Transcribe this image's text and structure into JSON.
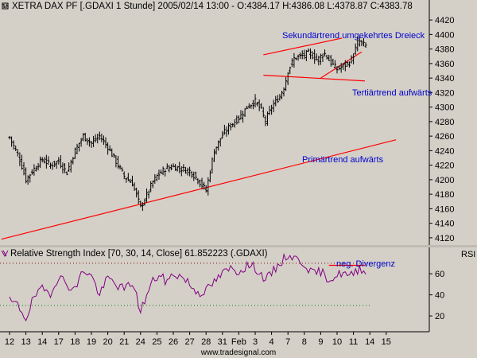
{
  "chart_data": [
    {
      "type": "ohlc",
      "title": "XETRA DAX PF [.GDAXI  1 Stunde] 2005/02/14 13:00 - O:4384.17 H:4386.08 L:4378.87 C:4383.78",
      "ylim": [
        4110,
        4430
      ],
      "y_ticks": [
        4120,
        4140,
        4160,
        4180,
        4200,
        4220,
        4240,
        4260,
        4280,
        4300,
        4320,
        4340,
        4360,
        4380,
        4400,
        4420
      ],
      "x_ticks": [
        "12",
        "13",
        "14",
        "17",
        "18",
        "19",
        "20",
        "21",
        "24",
        "25",
        "26",
        "27",
        "28",
        "31",
        "Feb",
        "3",
        "4",
        "7",
        "8",
        "9",
        "10",
        "11",
        "14",
        "15"
      ],
      "x_tick_slot": [
        0,
        1,
        2,
        3,
        4,
        5,
        6,
        7,
        8,
        9,
        10,
        11,
        12,
        13,
        14,
        15,
        16,
        17,
        18,
        19,
        20,
        21,
        22,
        23
      ],
      "annotations": [
        {
          "text": "Sekundärtrend umgekehrtes Dreieck"
        },
        {
          "text": "Tertiärtrend aufwärts"
        },
        {
          "text": "Primärtrend aufwärts"
        }
      ],
      "trendlines": [
        {
          "name": "primary",
          "from": [
            -0.5,
            4118
          ],
          "to": [
            23.6,
            4255
          ]
        },
        {
          "name": "wedge_upper",
          "from": [
            15.5,
            4372
          ],
          "to": [
            20.3,
            4395
          ]
        },
        {
          "name": "wedge_lower",
          "from": [
            15.5,
            4344
          ],
          "to": [
            21.7,
            4336
          ]
        },
        {
          "name": "tertiary",
          "from": [
            19.0,
            4340
          ],
          "to": [
            21.5,
            4376
          ]
        }
      ],
      "anchors": [
        [
          0,
          4258
        ],
        [
          0.6,
          4230
        ],
        [
          1.0,
          4200
        ],
        [
          1.5,
          4215
        ],
        [
          2.0,
          4228
        ],
        [
          2.5,
          4220
        ],
        [
          3.0,
          4225
        ],
        [
          3.5,
          4210
        ],
        [
          4.0,
          4240
        ],
        [
          4.5,
          4260
        ],
        [
          5.0,
          4250
        ],
        [
          5.5,
          4260
        ],
        [
          6.0,
          4245
        ],
        [
          6.5,
          4225
        ],
        [
          7.0,
          4205
        ],
        [
          7.5,
          4195
        ],
        [
          8.0,
          4162
        ],
        [
          8.3,
          4175
        ],
        [
          8.7,
          4195
        ],
        [
          9.0,
          4205
        ],
        [
          9.5,
          4215
        ],
        [
          10.0,
          4218
        ],
        [
          10.5,
          4215
        ],
        [
          11.0,
          4212
        ],
        [
          11.5,
          4200
        ],
        [
          12.0,
          4185
        ],
        [
          12.5,
          4240
        ],
        [
          13.0,
          4262
        ],
        [
          13.5,
          4275
        ],
        [
          14.0,
          4285
        ],
        [
          14.5,
          4300
        ],
        [
          15.0,
          4308
        ],
        [
          15.4,
          4295
        ],
        [
          15.6,
          4280
        ],
        [
          16.0,
          4300
        ],
        [
          16.5,
          4315
        ],
        [
          16.8,
          4330
        ],
        [
          17.0,
          4350
        ],
        [
          17.4,
          4368
        ],
        [
          17.8,
          4370
        ],
        [
          18.3,
          4375
        ],
        [
          18.8,
          4365
        ],
        [
          19.2,
          4375
        ],
        [
          19.6,
          4362
        ],
        [
          20.0,
          4352
        ],
        [
          20.5,
          4358
        ],
        [
          20.8,
          4362
        ],
        [
          21.0,
          4372
        ],
        [
          21.3,
          4392
        ],
        [
          21.6,
          4386
        ],
        [
          21.8,
          4384
        ]
      ],
      "last_bar": {
        "open": 4384.17,
        "high": 4386.08,
        "low": 4378.87,
        "close": 4383.78
      }
    },
    {
      "type": "line",
      "title": "Relative Strength Index [70, 30, 14, Close] 61.852223 (.GDAXI)",
      "ylabel": "RSI",
      "ylim": [
        5,
        85
      ],
      "y_ticks": [
        20,
        40,
        60
      ],
      "reference_levels": [
        70,
        30
      ],
      "annotations": [
        {
          "text": "neg. Divergenz"
        }
      ],
      "divergence_line": {
        "from": [
          19.5,
          68
        ],
        "to": [
          21.7,
          68
        ]
      },
      "anchors": [
        [
          0,
          34
        ],
        [
          0.5,
          30
        ],
        [
          1.0,
          18
        ],
        [
          1.5,
          38
        ],
        [
          2.0,
          45
        ],
        [
          2.5,
          42
        ],
        [
          3.0,
          58
        ],
        [
          3.5,
          50
        ],
        [
          4.0,
          45
        ],
        [
          4.5,
          64
        ],
        [
          5.0,
          58
        ],
        [
          5.5,
          40
        ],
        [
          6.0,
          56
        ],
        [
          6.5,
          50
        ],
        [
          7.0,
          45
        ],
        [
          7.5,
          52
        ],
        [
          8.0,
          25
        ],
        [
          8.4,
          40
        ],
        [
          8.8,
          55
        ],
        [
          9.2,
          58
        ],
        [
          9.6,
          52
        ],
        [
          10.0,
          60
        ],
        [
          10.4,
          58
        ],
        [
          10.8,
          54
        ],
        [
          11.2,
          46
        ],
        [
          11.6,
          42
        ],
        [
          12.0,
          44
        ],
        [
          12.5,
          52
        ],
        [
          13.0,
          60
        ],
        [
          13.5,
          65
        ],
        [
          14.0,
          62
        ],
        [
          14.5,
          68
        ],
        [
          15.0,
          66
        ],
        [
          15.4,
          58
        ],
        [
          15.7,
          55
        ],
        [
          16.0,
          60
        ],
        [
          16.5,
          70
        ],
        [
          17.0,
          78
        ],
        [
          17.5,
          74
        ],
        [
          18.0,
          70
        ],
        [
          18.5,
          60
        ],
        [
          19.0,
          62
        ],
        [
          19.5,
          55
        ],
        [
          20.0,
          58
        ],
        [
          20.4,
          62
        ],
        [
          20.7,
          56
        ],
        [
          21.0,
          60
        ],
        [
          21.4,
          66
        ],
        [
          21.8,
          62
        ]
      ]
    }
  ],
  "watermark": "www.tradesignal.com"
}
